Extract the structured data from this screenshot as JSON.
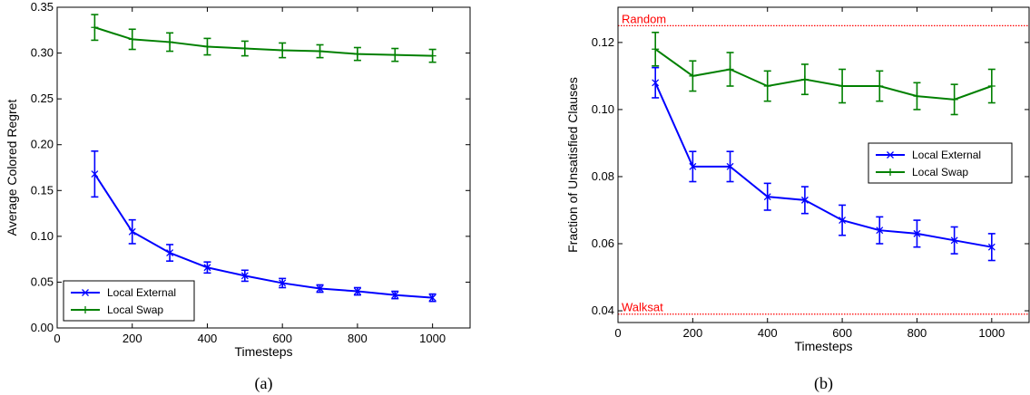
{
  "chart_data": [
    {
      "type": "line",
      "caption": "(a)",
      "xlabel": "Timesteps",
      "ylabel": "Average Colored Regret",
      "xlim": [
        0,
        1100
      ],
      "ylim": [
        0.0,
        0.35
      ],
      "xticks": [
        0,
        200,
        400,
        600,
        800,
        1000
      ],
      "xtick_labels": [
        "0",
        "200",
        "400",
        "600",
        "800",
        "1000"
      ],
      "yticks": [
        0.0,
        0.05,
        0.1,
        0.15,
        0.2,
        0.25,
        0.3,
        0.35
      ],
      "ytick_labels": [
        "0.00",
        "0.05",
        "0.10",
        "0.15",
        "0.20",
        "0.25",
        "0.30",
        "0.35"
      ],
      "grid": false,
      "legend_position": "bottom-left",
      "x": [
        100,
        200,
        300,
        400,
        500,
        600,
        700,
        800,
        900,
        1000
      ],
      "series": [
        {
          "name": "Local External",
          "color": "#0000ff",
          "marker": "x",
          "values": [
            0.168,
            0.105,
            0.082,
            0.066,
            0.057,
            0.049,
            0.043,
            0.04,
            0.036,
            0.033
          ],
          "errors": [
            0.025,
            0.013,
            0.009,
            0.006,
            0.006,
            0.005,
            0.004,
            0.004,
            0.004,
            0.004
          ]
        },
        {
          "name": "Local Swap",
          "color": "#008000",
          "marker": "+",
          "values": [
            0.328,
            0.315,
            0.312,
            0.307,
            0.305,
            0.303,
            0.302,
            0.299,
            0.298,
            0.297
          ],
          "errors": [
            0.014,
            0.011,
            0.01,
            0.009,
            0.008,
            0.008,
            0.007,
            0.007,
            0.007,
            0.007
          ]
        }
      ]
    },
    {
      "type": "line",
      "caption": "(b)",
      "xlabel": "Timesteps",
      "ylabel": "Fraction of Unsatisfied Clauses",
      "xlim": [
        0,
        1100
      ],
      "ylim": [
        0.0365,
        0.1305
      ],
      "xticks": [
        0,
        200,
        400,
        600,
        800,
        1000
      ],
      "xtick_labels": [
        "0",
        "200",
        "400",
        "600",
        "800",
        "1000"
      ],
      "yticks": [
        0.04,
        0.06,
        0.08,
        0.1,
        0.12
      ],
      "ytick_labels": [
        "0.04",
        "0.06",
        "0.08",
        "0.10",
        "0.12"
      ],
      "grid": false,
      "legend_position": "center-right",
      "x": [
        100,
        200,
        300,
        400,
        500,
        600,
        700,
        800,
        900,
        1000
      ],
      "reference_lines": [
        {
          "label": "Random",
          "value": 0.125,
          "color": "#ff0000"
        },
        {
          "label": "Walksat",
          "value": 0.039,
          "color": "#ff0000"
        }
      ],
      "series": [
        {
          "name": "Local External",
          "color": "#0000ff",
          "marker": "x",
          "values": [
            0.108,
            0.083,
            0.083,
            0.074,
            0.073,
            0.067,
            0.064,
            0.063,
            0.061,
            0.059
          ],
          "errors": [
            0.0045,
            0.0045,
            0.0045,
            0.004,
            0.004,
            0.0045,
            0.004,
            0.004,
            0.004,
            0.004
          ]
        },
        {
          "name": "Local Swap",
          "color": "#008000",
          "marker": "+",
          "values": [
            0.118,
            0.11,
            0.112,
            0.107,
            0.109,
            0.107,
            0.107,
            0.104,
            0.103,
            0.107
          ],
          "errors": [
            0.005,
            0.0045,
            0.005,
            0.0045,
            0.0045,
            0.005,
            0.0045,
            0.004,
            0.0045,
            0.005
          ]
        }
      ]
    }
  ]
}
